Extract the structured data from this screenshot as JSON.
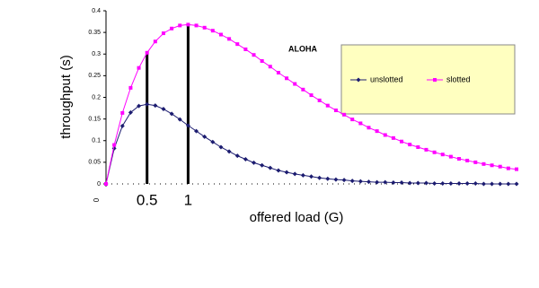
{
  "chart_data": {
    "type": "line",
    "title": "ALOHA",
    "x_label": "offered load (G)",
    "y_label": "throughput (s)",
    "x": [
      0,
      0.1,
      0.2,
      0.3,
      0.4,
      0.5,
      0.6,
      0.7,
      0.8,
      0.9,
      1,
      1.1,
      1.2,
      1.3,
      1.4,
      1.5,
      1.6,
      1.7,
      1.8,
      1.9,
      2,
      2.1,
      2.2,
      2.3,
      2.4,
      2.5,
      2.6,
      2.7,
      2.8,
      2.9,
      3,
      3.1,
      3.2,
      3.3,
      3.4,
      3.5,
      3.6,
      3.7,
      3.8,
      3.9,
      4,
      4.1,
      4.2,
      4.3,
      4.4,
      4.5,
      4.6,
      4.7,
      4.8,
      4.9,
      5
    ],
    "series": [
      {
        "name": "unslotted",
        "color": "#1c1c70",
        "marker": "diamond",
        "values": [
          0,
          0.082,
          0.134,
          0.165,
          0.18,
          0.184,
          0.181,
          0.173,
          0.162,
          0.149,
          0.135,
          0.122,
          0.109,
          0.097,
          0.085,
          0.075,
          0.065,
          0.057,
          0.049,
          0.043,
          0.037,
          0.031,
          0.027,
          0.023,
          0.02,
          0.017,
          0.014,
          0.012,
          0.01,
          0.009,
          0.007,
          0.006,
          0.005,
          0.004,
          0.004,
          0.003,
          0.003,
          0.002,
          0.002,
          0.002,
          0.001,
          0.001,
          0.001,
          0.001,
          0.001,
          0.001,
          0,
          0,
          0,
          0,
          0
        ]
      },
      {
        "name": "slotted",
        "color": "#ff00ff",
        "marker": "square",
        "values": [
          0,
          0.09,
          0.164,
          0.222,
          0.268,
          0.303,
          0.329,
          0.348,
          0.359,
          0.366,
          0.368,
          0.366,
          0.361,
          0.354,
          0.345,
          0.335,
          0.323,
          0.311,
          0.298,
          0.284,
          0.271,
          0.257,
          0.244,
          0.231,
          0.218,
          0.205,
          0.193,
          0.181,
          0.17,
          0.16,
          0.149,
          0.14,
          0.13,
          0.122,
          0.113,
          0.106,
          0.098,
          0.091,
          0.085,
          0.079,
          0.073,
          0.068,
          0.063,
          0.058,
          0.054,
          0.05,
          0.046,
          0.043,
          0.04,
          0.036,
          0.034
        ]
      }
    ],
    "xlim": [
      0,
      5
    ],
    "xticks": [
      0
    ],
    "ylim": [
      0,
      0.4
    ],
    "yticks": [
      0,
      0.05,
      0.1,
      0.15,
      0.2,
      0.25,
      0.3,
      0.35,
      0.4
    ],
    "vlines": [
      0.5,
      1
    ]
  }
}
